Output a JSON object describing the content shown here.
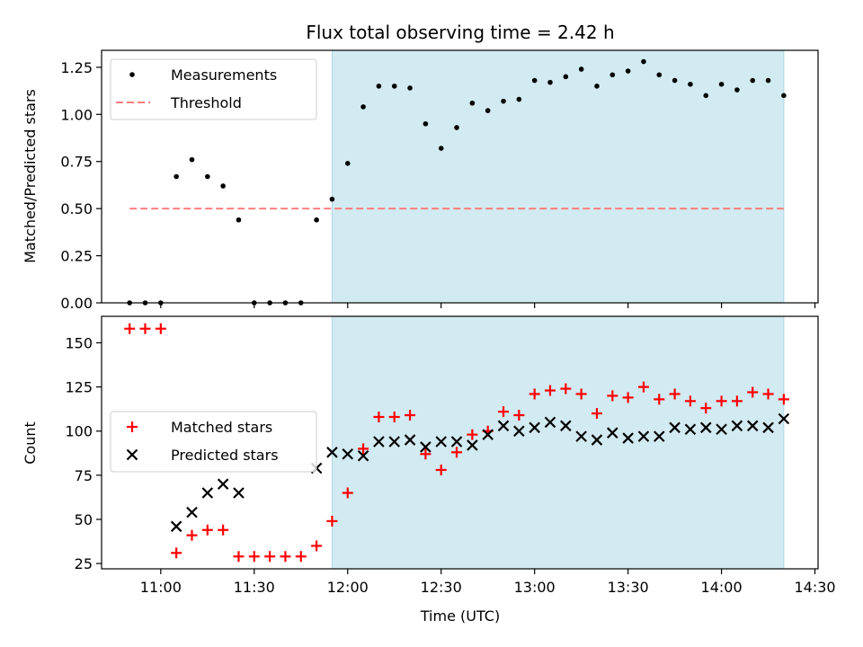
{
  "chart_data": [
    {
      "type": "scatter",
      "title": "Flux total observing time = 2.42 h",
      "xlabel": "",
      "ylabel": "Matched/Predicted stars",
      "ylim": [
        0,
        1.34
      ],
      "yticks": [
        0.0,
        0.25,
        0.5,
        0.75,
        1.0,
        1.25
      ],
      "ytick_labels": [
        "0.00",
        "0.25",
        "0.50",
        "0.75",
        "1.00",
        "1.25"
      ],
      "xlim": [
        "10:41",
        "14:31"
      ],
      "xticks": [
        "11:00",
        "11:30",
        "12:00",
        "12:30",
        "13:00",
        "13:30",
        "14:00",
        "14:30"
      ],
      "shaded_span": [
        "11:55",
        "14:20"
      ],
      "shade_color": "#add8e6",
      "legend_position": "upper-left",
      "legend": [
        {
          "label": "Measurements",
          "marker": "dot",
          "color": "#000000"
        },
        {
          "label": "Threshold",
          "marker": "dashed-line",
          "color": "#ff7f7f"
        }
      ],
      "threshold": {
        "value": 0.5,
        "x_start": "10:50",
        "x_end": "14:20"
      },
      "series": [
        {
          "name": "Measurements",
          "marker": "dot",
          "color": "#000000",
          "points": [
            [
              "10:50",
              0.0
            ],
            [
              "10:55",
              0.0
            ],
            [
              "11:00",
              0.0
            ],
            [
              "11:05",
              0.67
            ],
            [
              "11:10",
              0.76
            ],
            [
              "11:15",
              0.67
            ],
            [
              "11:20",
              0.62
            ],
            [
              "11:25",
              0.44
            ],
            [
              "11:30",
              0.0
            ],
            [
              "11:35",
              0.0
            ],
            [
              "11:40",
              0.0
            ],
            [
              "11:45",
              0.0
            ],
            [
              "11:50",
              0.44
            ],
            [
              "11:55",
              0.55
            ],
            [
              "12:00",
              0.74
            ],
            [
              "12:05",
              1.04
            ],
            [
              "12:10",
              1.15
            ],
            [
              "12:15",
              1.15
            ],
            [
              "12:20",
              1.14
            ],
            [
              "12:25",
              0.95
            ],
            [
              "12:30",
              0.82
            ],
            [
              "12:35",
              0.93
            ],
            [
              "12:40",
              1.06
            ],
            [
              "12:45",
              1.02
            ],
            [
              "12:50",
              1.07
            ],
            [
              "12:55",
              1.08
            ],
            [
              "13:00",
              1.18
            ],
            [
              "13:05",
              1.17
            ],
            [
              "13:10",
              1.2
            ],
            [
              "13:15",
              1.24
            ],
            [
              "13:20",
              1.15
            ],
            [
              "13:25",
              1.21
            ],
            [
              "13:30",
              1.23
            ],
            [
              "13:35",
              1.28
            ],
            [
              "13:40",
              1.21
            ],
            [
              "13:45",
              1.18
            ],
            [
              "13:50",
              1.16
            ],
            [
              "13:55",
              1.1
            ],
            [
              "14:00",
              1.16
            ],
            [
              "14:05",
              1.13
            ],
            [
              "14:10",
              1.18
            ],
            [
              "14:15",
              1.18
            ],
            [
              "14:20",
              1.1
            ]
          ]
        }
      ]
    },
    {
      "type": "scatter",
      "title": "",
      "xlabel": "Time (UTC)",
      "ylabel": "Count",
      "ylim": [
        22,
        165
      ],
      "yticks": [
        25,
        50,
        75,
        100,
        125,
        150
      ],
      "ytick_labels": [
        "25",
        "50",
        "75",
        "100",
        "125",
        "150"
      ],
      "xlim": [
        "10:41",
        "14:31"
      ],
      "xticks": [
        "11:00",
        "11:30",
        "12:00",
        "12:30",
        "13:00",
        "13:30",
        "14:00",
        "14:30"
      ],
      "xtick_labels": [
        "11:00",
        "11:30",
        "12:00",
        "12:30",
        "13:00",
        "13:30",
        "14:00",
        "14:30"
      ],
      "shaded_span": [
        "11:55",
        "14:20"
      ],
      "shade_color": "#add8e6",
      "legend_position": "center-left",
      "legend": [
        {
          "label": "Matched stars",
          "marker": "plus",
          "color": "#ff0000"
        },
        {
          "label": "Predicted stars",
          "marker": "x",
          "color": "#000000"
        }
      ],
      "series": [
        {
          "name": "Matched stars",
          "marker": "plus",
          "color": "#ff0000",
          "points": [
            [
              "10:50",
              158
            ],
            [
              "10:55",
              158
            ],
            [
              "11:00",
              158
            ],
            [
              "11:05",
              31
            ],
            [
              "11:10",
              41
            ],
            [
              "11:15",
              44
            ],
            [
              "11:20",
              44
            ],
            [
              "11:25",
              29
            ],
            [
              "11:30",
              29
            ],
            [
              "11:35",
              29
            ],
            [
              "11:40",
              29
            ],
            [
              "11:45",
              29
            ],
            [
              "11:50",
              35
            ],
            [
              "11:55",
              49
            ],
            [
              "12:00",
              65
            ],
            [
              "12:05",
              90
            ],
            [
              "12:10",
              108
            ],
            [
              "12:15",
              108
            ],
            [
              "12:20",
              109
            ],
            [
              "12:25",
              87
            ],
            [
              "12:30",
              78
            ],
            [
              "12:35",
              88
            ],
            [
              "12:40",
              98
            ],
            [
              "12:45",
              100
            ],
            [
              "12:50",
              111
            ],
            [
              "12:55",
              109
            ],
            [
              "13:00",
              121
            ],
            [
              "13:05",
              123
            ],
            [
              "13:10",
              124
            ],
            [
              "13:15",
              121
            ],
            [
              "13:20",
              110
            ],
            [
              "13:25",
              120
            ],
            [
              "13:30",
              119
            ],
            [
              "13:35",
              125
            ],
            [
              "13:40",
              118
            ],
            [
              "13:45",
              121
            ],
            [
              "13:50",
              117
            ],
            [
              "13:55",
              113
            ],
            [
              "14:00",
              117
            ],
            [
              "14:05",
              117
            ],
            [
              "14:10",
              122
            ],
            [
              "14:15",
              121
            ],
            [
              "14:20",
              118
            ]
          ]
        },
        {
          "name": "Predicted stars",
          "marker": "x",
          "color": "#000000",
          "points": [
            [
              "11:05",
              46
            ],
            [
              "11:10",
              54
            ],
            [
              "11:15",
              65
            ],
            [
              "11:20",
              70
            ],
            [
              "11:25",
              65
            ],
            [
              "11:50",
              79
            ],
            [
              "11:55",
              88
            ],
            [
              "12:00",
              87
            ],
            [
              "12:05",
              86
            ],
            [
              "12:10",
              94
            ],
            [
              "12:15",
              94
            ],
            [
              "12:20",
              95
            ],
            [
              "12:25",
              91
            ],
            [
              "12:30",
              94
            ],
            [
              "12:35",
              94
            ],
            [
              "12:40",
              92
            ],
            [
              "12:45",
              98
            ],
            [
              "12:50",
              103
            ],
            [
              "12:55",
              100
            ],
            [
              "13:00",
              102
            ],
            [
              "13:05",
              105
            ],
            [
              "13:10",
              103
            ],
            [
              "13:15",
              97
            ],
            [
              "13:20",
              95
            ],
            [
              "13:25",
              99
            ],
            [
              "13:30",
              96
            ],
            [
              "13:35",
              97
            ],
            [
              "13:40",
              97
            ],
            [
              "13:45",
              102
            ],
            [
              "13:50",
              101
            ],
            [
              "13:55",
              102
            ],
            [
              "14:00",
              101
            ],
            [
              "14:05",
              103
            ],
            [
              "14:10",
              103
            ],
            [
              "14:15",
              102
            ],
            [
              "14:20",
              107
            ]
          ]
        }
      ]
    }
  ]
}
